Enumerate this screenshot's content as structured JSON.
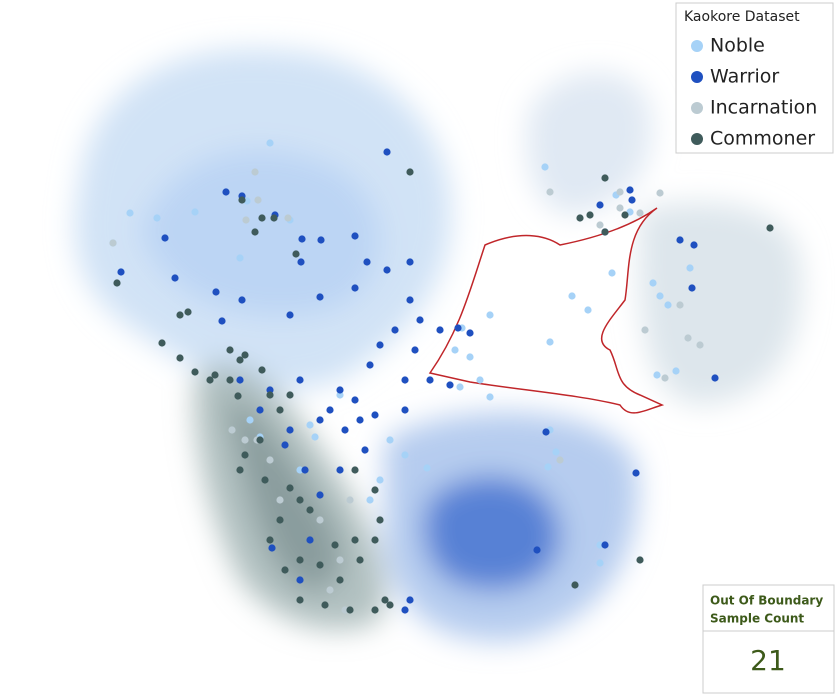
{
  "chart_data": {
    "type": "scatter",
    "legend_title": "Kaokore Dataset",
    "legend_position": "upper right",
    "series": [
      {
        "name": "Noble",
        "color": "#a6d2f7",
        "x": [
          270,
          130,
          157,
          195,
          247,
          113,
          290,
          240,
          545,
          616,
          630,
          612,
          572,
          588,
          462,
          490,
          550,
          455,
          470,
          460,
          490,
          480,
          427,
          548,
          556,
          340,
          310,
          260,
          315,
          390,
          405,
          380,
          370,
          660,
          668,
          657,
          676,
          653,
          600,
          600,
          690,
          250,
          300,
          550
        ],
        "values": [
          551,
          481,
          476,
          482,
          493,
          451,
          474,
          436,
          527,
          499,
          482,
          421,
          398,
          384,
          366,
          379,
          352,
          344,
          337,
          307,
          297,
          314,
          226,
          227,
          242,
          299,
          269,
          257,
          257,
          254,
          239,
          214,
          194,
          398,
          389,
          319,
          323,
          411,
          149,
          131,
          426,
          274,
          224,
          264
        ]
      },
      {
        "name": "Warrior",
        "color": "#1f50c0",
        "x": [
          387,
          226,
          242,
          165,
          175,
          121,
          216,
          222,
          242,
          275,
          302,
          321,
          355,
          301,
          367,
          355,
          320,
          290,
          410,
          387,
          410,
          420,
          440,
          415,
          405,
          395,
          380,
          370,
          355,
          340,
          330,
          300,
          290,
          320,
          345,
          360,
          375,
          405,
          430,
          450,
          365,
          340,
          320,
          305,
          285,
          600,
          605,
          630,
          632,
          694,
          680,
          692,
          715,
          546,
          636,
          537,
          605,
          410,
          405,
          310,
          300,
          272,
          458,
          470,
          260,
          270,
          240
        ],
        "values": [
          542,
          502,
          498,
          456,
          416,
          422,
          402,
          373,
          394,
          479,
          455,
          454,
          458,
          432,
          432,
          406,
          397,
          379,
          432,
          424,
          394,
          374,
          364,
          344,
          314,
          364,
          349,
          329,
          294,
          304,
          284,
          314,
          264,
          274,
          264,
          274,
          279,
          284,
          314,
          309,
          244,
          224,
          199,
          224,
          249,
          489,
          462,
          504,
          494,
          449,
          454,
          406,
          316,
          262,
          221,
          144,
          149,
          94,
          84,
          154,
          114,
          146,
          366,
          361,
          284,
          304,
          314
        ]
      },
      {
        "name": "Incarnation",
        "color": "#bccbd2",
        "x": [
          255,
          258,
          288,
          113,
          246,
          550,
          620,
          620,
          660,
          640,
          600,
          680,
          688,
          700,
          645,
          665,
          560,
          270,
          320,
          350,
          280,
          232,
          245,
          257,
          340,
          345,
          330
        ],
        "values": [
          522,
          494,
          476,
          451,
          474,
          502,
          502,
          486,
          501,
          481,
          469,
          389,
          356,
          349,
          364,
          316,
          234,
          234,
          174,
          194,
          194,
          264,
          254,
          254,
          134,
          84,
          104
        ]
      },
      {
        "name": "Commoner",
        "color": "#3f5b5b",
        "x": [
          242,
          262,
          274,
          410,
          255,
          296,
          117,
          188,
          180,
          240,
          162,
          180,
          195,
          215,
          230,
          245,
          262,
          270,
          280,
          290,
          260,
          245,
          240,
          265,
          290,
          300,
          310,
          280,
          270,
          300,
          320,
          335,
          355,
          360,
          340,
          325,
          350,
          300,
          285,
          355,
          375,
          380,
          375,
          385,
          390,
          375,
          605,
          580,
          590,
          770,
          605,
          625,
          575,
          640,
          230,
          238,
          210
        ],
        "values": [
          494,
          476,
          476,
          522,
          462,
          440,
          411,
          382,
          379,
          334,
          351,
          336,
          322,
          319,
          314,
          339,
          324,
          299,
          284,
          299,
          254,
          239,
          224,
          214,
          206,
          194,
          184,
          174,
          154,
          134,
          129,
          149,
          154,
          134,
          114,
          89,
          84,
          94,
          124,
          224,
          204,
          174,
          154,
          94,
          89,
          84,
          516,
          476,
          479,
          466,
          462,
          479,
          109,
          134,
          344,
          298,
          314
        ]
      }
    ],
    "out_of_boundary": {
      "label": [
        "Out Of Boundary",
        "Sample Count"
      ],
      "value": 21
    }
  }
}
